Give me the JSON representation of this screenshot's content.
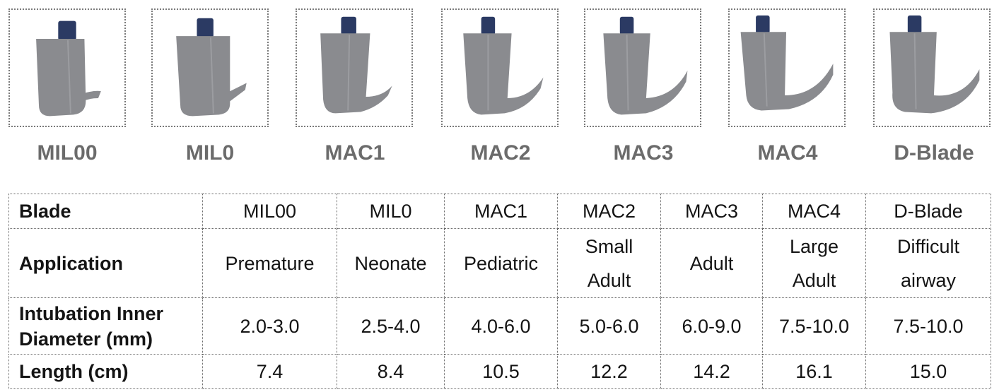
{
  "blades": [
    {
      "name": "MIL00"
    },
    {
      "name": "MIL0"
    },
    {
      "name": "MAC1"
    },
    {
      "name": "MAC2"
    },
    {
      "name": "MAC3"
    },
    {
      "name": "MAC4"
    },
    {
      "name": "D-Blade"
    }
  ],
  "colors": {
    "blade_gray": "#8a8b8f",
    "cap_navy": "#2b3a63",
    "label_gray": "#6b6b6b",
    "border": "#6a6a6a"
  },
  "table": {
    "row_labels": {
      "blade": "Blade",
      "application": "Application",
      "tube_line1": "Intubation Inner",
      "tube_line2": "Diameter (mm)",
      "length": "Length (cm)"
    },
    "blade_row": [
      "MIL00",
      "MIL0",
      "MAC1",
      "MAC2",
      "MAC3",
      "MAC4",
      "D-Blade"
    ],
    "application_row": [
      {
        "l1": "Premature",
        "l2": ""
      },
      {
        "l1": "Neonate",
        "l2": ""
      },
      {
        "l1": "Pediatric",
        "l2": ""
      },
      {
        "l1": "Small",
        "l2": "Adult"
      },
      {
        "l1": "Adult",
        "l2": ""
      },
      {
        "l1": "Large",
        "l2": "Adult"
      },
      {
        "l1": "Difficult",
        "l2": "airway"
      }
    ],
    "diameter_row": [
      "2.0-3.0",
      "2.5-4.0",
      "4.0-6.0",
      "5.0-6.0",
      "6.0-9.0",
      "7.5-10.0",
      "7.5-10.0"
    ],
    "length_row": [
      "7.4",
      "8.4",
      "10.5",
      "12.2",
      "14.2",
      "16.1",
      "15.0"
    ]
  }
}
